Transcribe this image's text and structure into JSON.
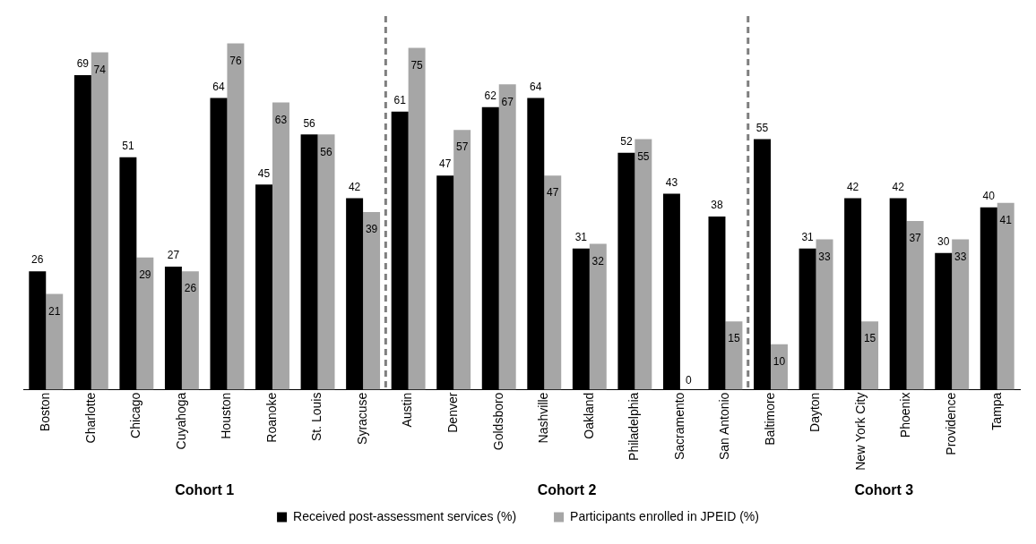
{
  "chart_data": {
    "type": "bar",
    "categories": [
      "Boston",
      "Charlotte",
      "Chicago",
      "Cuyahoga",
      "Houston",
      "Roanoke",
      "St. Louis",
      "Syracuse",
      "Austin",
      "Denver",
      "Goldsboro",
      "Nashville",
      "Oakland",
      "Philadelphia",
      "Sacramento",
      "San Antonio",
      "Baltimore",
      "Dayton",
      "New York City",
      "Phoenix",
      "Providence",
      "Tampa"
    ],
    "series": [
      {
        "name": "Received post-assessment services (%)",
        "color": "#000000",
        "values": [
          26,
          69,
          51,
          27,
          64,
          45,
          56,
          42,
          61,
          47,
          62,
          64,
          31,
          52,
          43,
          38,
          55,
          31,
          42,
          42,
          30,
          40
        ]
      },
      {
        "name": "Participants enrolled in JPEID (%)",
        "color": "#a6a6a6",
        "values": [
          21,
          74,
          29,
          26,
          76,
          63,
          56,
          39,
          75,
          57,
          67,
          47,
          32,
          55,
          0,
          15,
          10,
          33,
          15,
          37,
          33,
          41
        ]
      }
    ],
    "data_labels": true,
    "annotations": [
      "Cohort 1",
      "Cohort 2",
      "Cohort 3"
    ],
    "legend": "bottom",
    "grid": false
  }
}
